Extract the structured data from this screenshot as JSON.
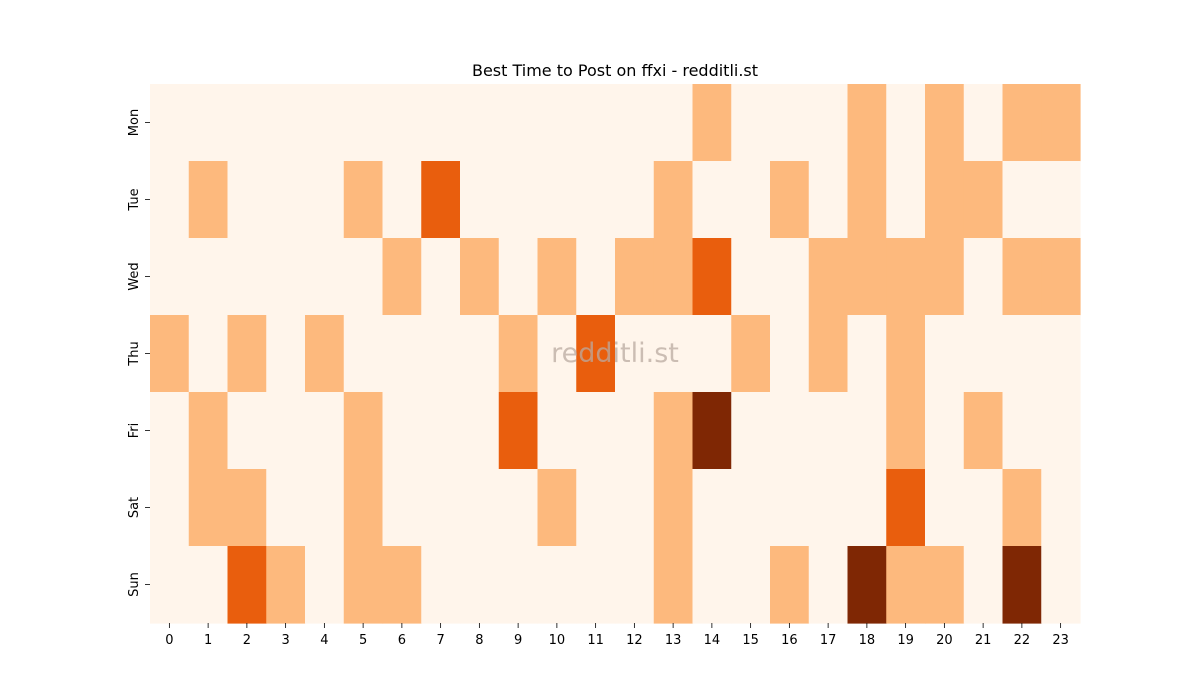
{
  "chart_data": {
    "type": "heatmap",
    "title": "Best Time to Post on ffxi - redditli.st",
    "xlabel": "",
    "ylabel": "",
    "x_categories": [
      "0",
      "1",
      "2",
      "3",
      "4",
      "5",
      "6",
      "7",
      "8",
      "9",
      "10",
      "11",
      "12",
      "13",
      "14",
      "15",
      "16",
      "17",
      "18",
      "19",
      "20",
      "21",
      "22",
      "23"
    ],
    "y_categories": [
      "Mon",
      "Tue",
      "Wed",
      "Thu",
      "Fri",
      "Sat",
      "Sun"
    ],
    "values": [
      [
        0,
        0,
        0,
        0,
        0,
        0,
        0,
        0,
        0,
        0,
        0,
        0,
        0,
        0,
        1,
        0,
        0,
        0,
        1,
        0,
        1,
        0,
        1,
        1
      ],
      [
        0,
        1,
        0,
        0,
        0,
        1,
        0,
        2,
        0,
        0,
        0,
        0,
        0,
        1,
        0,
        0,
        1,
        0,
        1,
        0,
        1,
        1,
        0,
        0
      ],
      [
        0,
        0,
        0,
        0,
        0,
        0,
        1,
        0,
        1,
        0,
        1,
        0,
        1,
        1,
        2,
        0,
        0,
        1,
        1,
        1,
        1,
        0,
        1,
        1
      ],
      [
        1,
        0,
        1,
        0,
        1,
        0,
        0,
        0,
        0,
        1,
        0,
        2,
        0,
        0,
        0,
        1,
        0,
        1,
        0,
        1,
        0,
        0,
        0,
        0
      ],
      [
        0,
        1,
        0,
        0,
        0,
        1,
        0,
        0,
        0,
        2,
        0,
        0,
        0,
        1,
        3,
        0,
        0,
        0,
        0,
        1,
        0,
        1,
        0,
        0
      ],
      [
        0,
        1,
        1,
        0,
        0,
        1,
        0,
        0,
        0,
        0,
        1,
        0,
        0,
        1,
        0,
        0,
        0,
        0,
        0,
        2,
        0,
        0,
        1,
        0
      ],
      [
        0,
        0,
        2,
        1,
        0,
        1,
        1,
        0,
        0,
        0,
        0,
        0,
        0,
        1,
        0,
        0,
        1,
        0,
        3,
        1,
        1,
        0,
        3,
        0
      ]
    ],
    "color_scale": [
      "#fff5eb",
      "#fdb97d",
      "#e95e0d",
      "#7f2704"
    ],
    "colorbar": false,
    "grid": false,
    "watermark": "redditli.st"
  }
}
